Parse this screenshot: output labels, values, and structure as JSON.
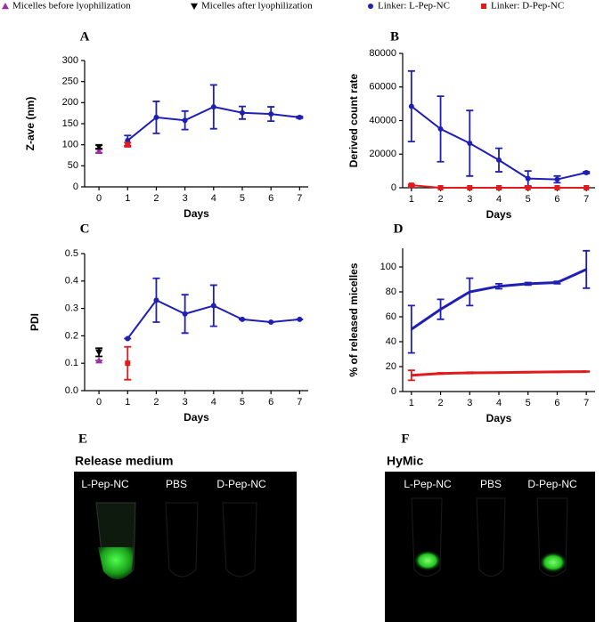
{
  "chart_data": [
    {
      "type": "line",
      "title": "A",
      "x_label": "Days",
      "y_label": "Z-ave (nm)",
      "xlim": [
        -0.5,
        7.3
      ],
      "xticks": [
        0,
        1,
        2,
        3,
        4,
        5,
        6,
        7
      ],
      "ylim": [
        0,
        300
      ],
      "yticks": [
        0,
        50,
        100,
        150,
        200,
        250,
        300
      ],
      "series": [
        {
          "name": "Micelles before lyophilization",
          "color": "#9b30a0",
          "marker": "triangle-up",
          "x": [
            0
          ],
          "values": [
            85
          ],
          "errors": [
            4
          ]
        },
        {
          "name": "Micelles after lyophilization",
          "color": "#000000",
          "marker": "triangle-down",
          "x": [
            0
          ],
          "values": [
            95
          ],
          "errors": [
            4
          ]
        },
        {
          "name": "Linker: L-Pep-NC",
          "color": "#1f1fb4",
          "marker": "circle",
          "x": [
            1,
            2,
            3,
            4,
            5,
            6,
            7
          ],
          "values": [
            110,
            165,
            158,
            190,
            176,
            173,
            165
          ],
          "errors": [
            12,
            38,
            22,
            52,
            15,
            17,
            2
          ]
        },
        {
          "name": "Linker: D-Pep-NC",
          "color": "#e31a1c",
          "marker": "square",
          "x": [
            1
          ],
          "values": [
            100
          ],
          "errors": [
            5
          ]
        }
      ]
    },
    {
      "type": "line",
      "title": "B",
      "x_label": "Days",
      "y_label": "Derived count rate",
      "xlim": [
        0.7,
        7.3
      ],
      "xticks": [
        1,
        2,
        3,
        4,
        5,
        6,
        7
      ],
      "ylim": [
        0,
        80000
      ],
      "yticks": [
        0,
        20000,
        40000,
        60000,
        80000
      ],
      "series": [
        {
          "color": "#1f1fb4",
          "marker": "circle",
          "x": [
            1,
            2,
            3,
            4,
            5,
            6,
            7
          ],
          "values": [
            48500,
            35000,
            26500,
            16500,
            5500,
            5000,
            9000
          ],
          "errors": [
            21000,
            19500,
            19500,
            7000,
            4500,
            2000,
            500
          ]
        },
        {
          "color": "#e31a1c",
          "marker": "square",
          "x": [
            1,
            2,
            3,
            4,
            5,
            6,
            7
          ],
          "values": [
            1500,
            0,
            0,
            0,
            0,
            0,
            0
          ],
          "errors": [
            500,
            0,
            0,
            0,
            0,
            0,
            0
          ]
        }
      ]
    },
    {
      "type": "line",
      "title": "C",
      "x_label": "Days",
      "y_label": "PDI",
      "xlim": [
        -0.5,
        7.3
      ],
      "xticks": [
        0,
        1,
        2,
        3,
        4,
        5,
        6,
        7
      ],
      "ylim": [
        0,
        0.5
      ],
      "yticks": [
        {
          "value": 0,
          "label": "0.0"
        },
        0.1,
        0.2,
        0.3,
        0.4,
        0.5
      ],
      "series": [
        {
          "color": "#9b30a0",
          "marker": "triangle-up",
          "x": [
            0
          ],
          "values": [
            0.11
          ],
          "errors": [
            0
          ]
        },
        {
          "color": "#000000",
          "marker": "triangle-down",
          "x": [
            0
          ],
          "values": [
            0.14
          ],
          "errors": [
            0.015
          ]
        },
        {
          "color": "#1f1fb4",
          "marker": "circle",
          "x": [
            1,
            2,
            3,
            4,
            5,
            6,
            7
          ],
          "values": [
            0.19,
            0.33,
            0.28,
            0.31,
            0.26,
            0.25,
            0.26
          ],
          "errors": [
            0,
            0.08,
            0.07,
            0.075,
            0,
            0,
            0
          ]
        },
        {
          "color": "#e31a1c",
          "marker": "square",
          "x": [
            1
          ],
          "values": [
            0.1
          ],
          "errors": [
            0.06
          ]
        }
      ]
    },
    {
      "type": "line",
      "title": "D",
      "x_label": "Days",
      "y_label": "% of released micelles",
      "xlim": [
        0.7,
        7.3
      ],
      "xticks": [
        1,
        2,
        3,
        4,
        5,
        6,
        7
      ],
      "ylim": [
        0,
        115
      ],
      "yticks": [
        0,
        20,
        40,
        60,
        80,
        100
      ],
      "series": [
        {
          "color": "#1f1fb4",
          "marker": "none",
          "x": [
            1,
            2,
            3,
            4,
            5,
            6,
            7
          ],
          "values": [
            50,
            66,
            80,
            84.5,
            86.5,
            87.5,
            98
          ],
          "errors": [
            19,
            8,
            11,
            2,
            1,
            1,
            15
          ]
        },
        {
          "color": "#e31a1c",
          "marker": "none",
          "x": [
            1,
            2,
            3,
            4,
            5,
            6,
            7
          ],
          "values": [
            13,
            14.5,
            15,
            15.2,
            15.5,
            15.8,
            16
          ],
          "errors": [
            4,
            0.5,
            0.5,
            0.3,
            0.3,
            0.3,
            0.3
          ]
        }
      ]
    }
  ],
  "photos": [
    {
      "letter": "E",
      "title": "Release medium",
      "labels": [
        "L-Pep-NC",
        "PBS",
        "D-Pep-NC"
      ]
    },
    {
      "letter": "F",
      "title": "HyMic",
      "labels": [
        "L-Pep-NC",
        "PBS",
        "D-Pep-NC"
      ]
    }
  ]
}
